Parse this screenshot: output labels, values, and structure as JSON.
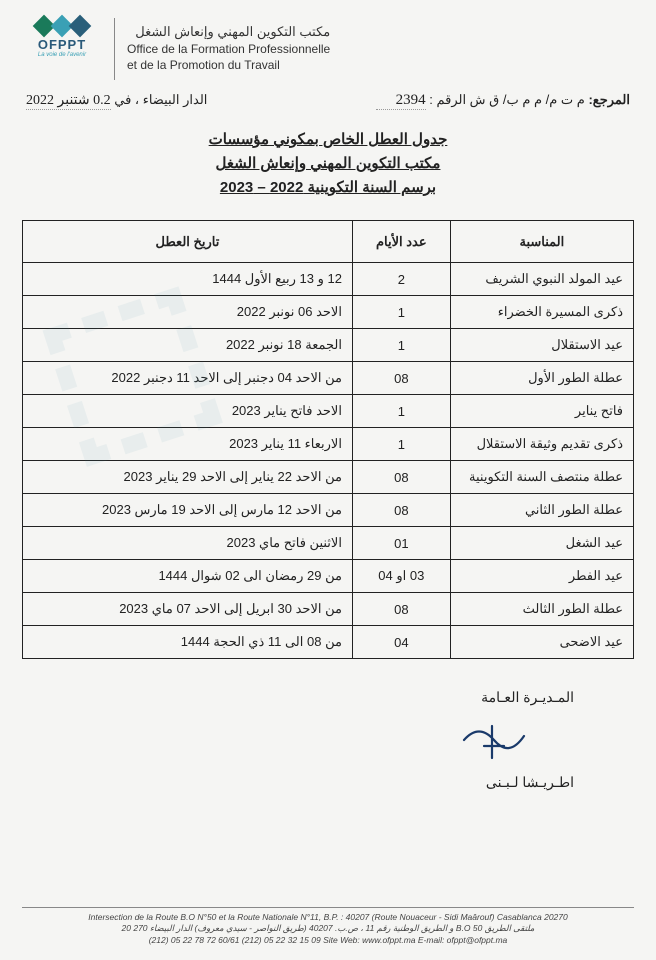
{
  "logo": {
    "name": "OFPPT",
    "tagline": "La voie de l'avenir"
  },
  "header": {
    "ar": "مكتب التكوين المهني وإنعاش الشغل",
    "fr1": "Office de la Formation Professionnelle",
    "fr2": "et de la Promotion du Travail"
  },
  "ref": {
    "label": "المرجع:",
    "prefix": "م ت م/ م م ب/ ق ش الرقم :",
    "number": "2394",
    "city_label": "الدار البيضاء ، في",
    "date": "0.2 شتنبر 2022"
  },
  "title": {
    "l1": "جدول العطل الخاص بمكوني مؤسسات",
    "l2": "مكتب التكوين المهني وإنعاش الشغل",
    "l3": "برسم السنة التكوينية 2022 – 2023"
  },
  "table": {
    "headers": {
      "occasion": "المناسبة",
      "days": "عدد الأيام",
      "dates": "تاريخ العطل"
    },
    "rows": [
      {
        "occasion": "عيد المولد النبوي الشريف",
        "days": "2",
        "dates": "12 و 13 ربيع الأول 1444"
      },
      {
        "occasion": "ذكرى المسيرة الخضراء",
        "days": "1",
        "dates": "الاحد 06 نونبر 2022"
      },
      {
        "occasion": "عيد الاستقلال",
        "days": "1",
        "dates": "الجمعة 18 نونبر 2022"
      },
      {
        "occasion": "عطلة الطور الأول",
        "days": "08",
        "dates": "من الاحد 04 دجنبر إلى الاحد 11 دجنبر 2022"
      },
      {
        "occasion": "فاتح يناير",
        "days": "1",
        "dates": "الاحد فاتح يناير 2023"
      },
      {
        "occasion": "ذكرى تقديم وثيقة الاستقلال",
        "days": "1",
        "dates": "الاربعاء 11 يناير 2023"
      },
      {
        "occasion": "عطلة منتصف السنة التكوينية",
        "days": "08",
        "dates": "من الاحد 22 يناير إلى الاحد 29 يناير 2023"
      },
      {
        "occasion": "عطلة الطور الثاني",
        "days": "08",
        "dates": "من الاحد 12 مارس إلى الاحد 19 مارس 2023"
      },
      {
        "occasion": "عيد الشغل",
        "days": "01",
        "dates": "الاثنين فاتح ماي 2023"
      },
      {
        "occasion": "عيد الفطر",
        "days": "03 او 04",
        "dates": "من 29 رمضان الى 02 شوال 1444"
      },
      {
        "occasion": "عطلة الطور الثالث",
        "days": "08",
        "dates": "من الاحد 30 ابريل إلى الاحد 07 ماي 2023"
      },
      {
        "occasion": "عيد الاضحى",
        "days": "04",
        "dates": "من 08 الى 11 ذي الحجة 1444"
      }
    ]
  },
  "signature": {
    "title": "المـديـرة العـامة",
    "name": "اطـريـشا لـبـنى"
  },
  "footer": {
    "l1": "Intersection de la Route B.O N°50 et la Route Nationale N°11, B.P. : 40207 (Route Nouaceur - Sidi Maârouf) Casablanca 20270",
    "l2": "ملتقى الطريق B.O 50 و الطريق الوطنية رقم 11 ، ص.ب. 40207 (طريق النواصر - سيدي معروف) الدار البيضاء 270 20",
    "l3": "(212) 05 22 78 72 60/61 (212) 05 22 32 15 09 Site Web: www.ofppt.ma E-mail: ofppt@ofppt.ma"
  },
  "style": {
    "page_bg": "#f5f5f3",
    "text_color": "#222",
    "border_color": "#222",
    "logo_colors": [
      "#1a7a5a",
      "#3aa0b5",
      "#2a5f7a"
    ],
    "font_title": 15,
    "font_body": 13,
    "font_footer": 8.5
  }
}
